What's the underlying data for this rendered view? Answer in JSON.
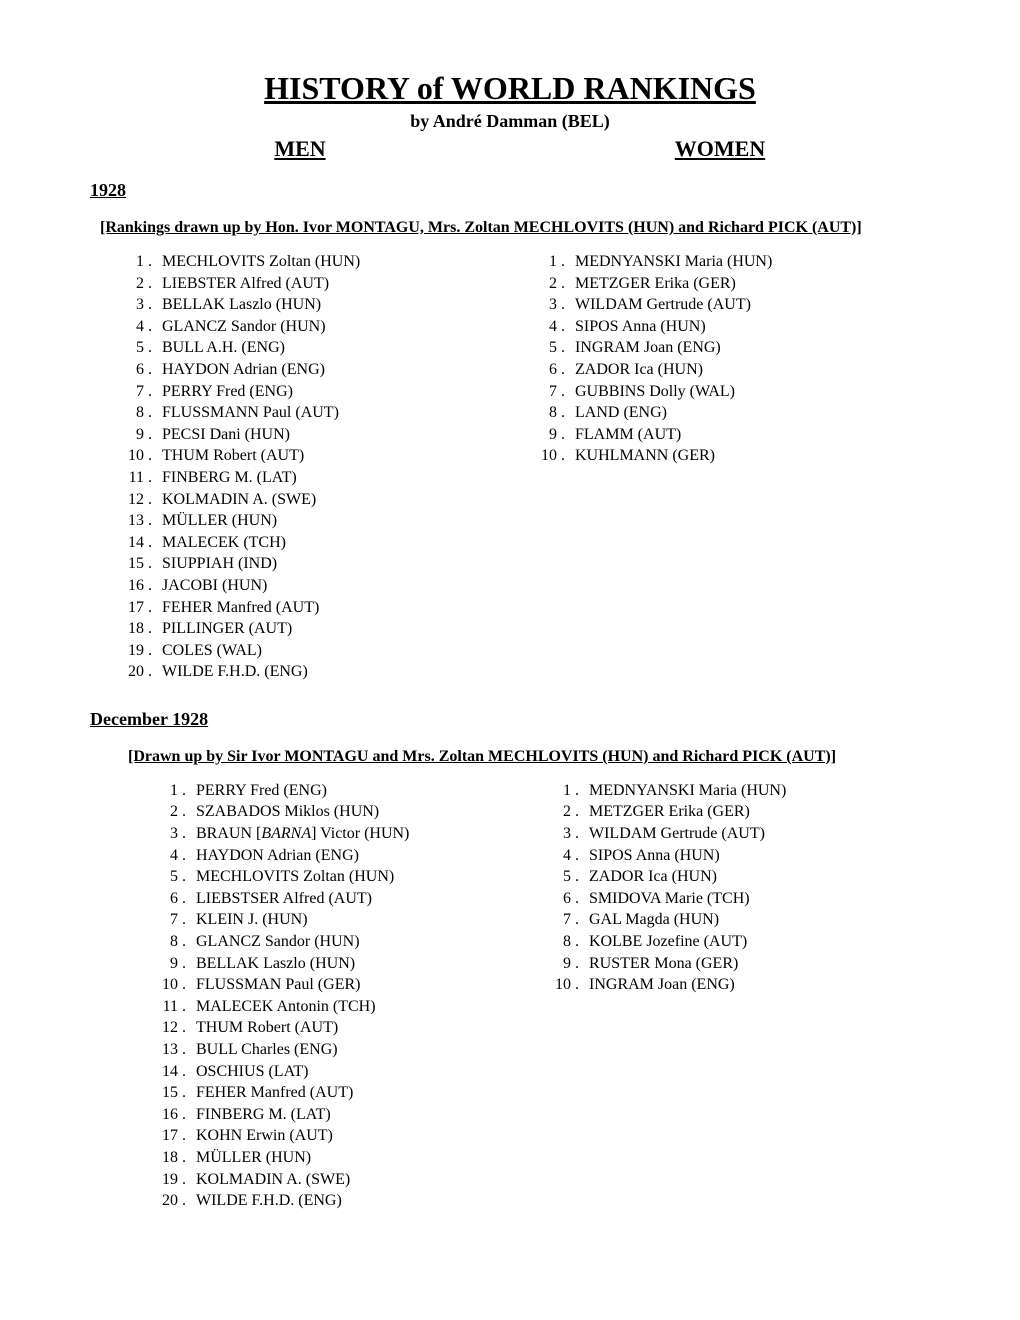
{
  "title": "HISTORY of WORLD RANKINGS",
  "author": "by André Damman (BEL)",
  "headers": {
    "men": "MEN",
    "women": "WOMEN"
  },
  "sections": [
    {
      "year": "1928",
      "note": "[Rankings drawn up by Hon. Ivor MONTAGU, Mrs. Zoltan MECHLOVITS (HUN) and Richard PICK (AUT)]",
      "men": [
        "MECHLOVITS Zoltan (HUN)",
        "LIEBSTER Alfred (AUT)",
        "BELLAK Laszlo (HUN)",
        "GLANCZ Sandor (HUN)",
        "BULL A.H. (ENG)",
        "HAYDON Adrian (ENG)",
        "PERRY Fred (ENG)",
        "FLUSSMANN Paul (AUT)",
        "PECSI Dani (HUN)",
        "THUM Robert (AUT)",
        "FINBERG M. (LAT)",
        "KOLMADIN A. (SWE)",
        "MÜLLER (HUN)",
        "MALECEK (TCH)",
        "SIUPPIAH (IND)",
        "JACOBI (HUN)",
        "FEHER Manfred (AUT)",
        "PILLINGER (AUT)",
        "COLES (WAL)",
        "WILDE F.H.D. (ENG)"
      ],
      "women": [
        "MEDNYANSKI Maria (HUN)",
        "METZGER Erika (GER)",
        "WILDAM Gertrude (AUT)",
        "SIPOS Anna (HUN)",
        "INGRAM Joan (ENG)",
        "ZADOR Ica (HUN)",
        "GUBBINS Dolly (WAL)",
        "LAND (ENG)",
        "FLAMM (AUT)",
        "KUHLMANN (GER)"
      ]
    },
    {
      "year": "December 1928",
      "note": "[Drawn up by Sir Ivor MONTAGU and Mrs.  Zoltan MECHLOVITS (HUN) and Richard PICK (AUT)]",
      "men": [
        "PERRY Fred (ENG)",
        "SZABADOS Miklos (HUN)",
        "BRAUN [BARNA] Victor (HUN)",
        "HAYDON Adrian (ENG)",
        "MECHLOVITS Zoltan (HUN)",
        "LIEBSTSER Alfred (AUT)",
        "KLEIN J. (HUN)",
        "GLANCZ Sandor (HUN)",
        "BELLAK Laszlo (HUN)",
        "FLUSSMAN Paul (GER)",
        "MALECEK Antonin (TCH)",
        "THUM Robert (AUT)",
        "BULL Charles (ENG)",
        "OSCHIUS (LAT)",
        "FEHER Manfred (AUT)",
        "FINBERG M. (LAT)",
        "KOHN Erwin (AUT)",
        "MÜLLER (HUN)",
        "KOLMADIN A. (SWE)",
        "WILDE F.H.D. (ENG)"
      ],
      "women": [
        "MEDNYANSKI Maria (HUN)",
        "METZGER Erika (GER)",
        "WILDAM Gertrude (AUT)",
        "SIPOS Anna (HUN)",
        "ZADOR Ica (HUN)",
        "SMIDOVA Marie (TCH)",
        "GAL Magda (HUN)",
        "KOLBE Jozefine (AUT)",
        "RUSTER Mona (GER)",
        "INGRAM Joan (ENG)"
      ]
    }
  ]
}
